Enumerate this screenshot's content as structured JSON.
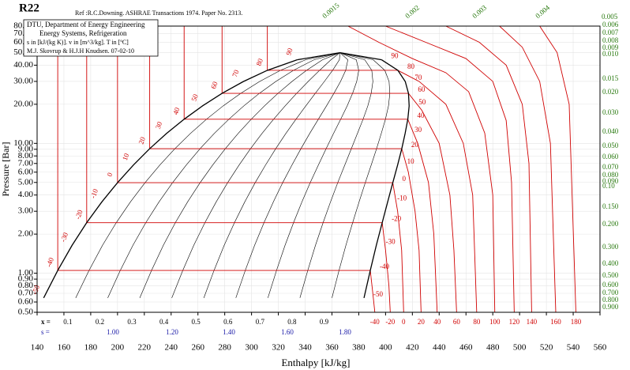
{
  "chart_data": {
    "type": "line",
    "title": "R22",
    "reference": "Ref :R.C.Downing. ASHRAE Transactions 1974. Paper No. 2313.",
    "info": [
      "DTU, Department of Energy Engineering",
      "Energy Systems, Refrigeration",
      "s in [kJ/(kg K)]. v in [m^3/kg]. T in [ºC]",
      "M.J. Skovrup & H.J.H Knudsen. 07-02-10"
    ],
    "xlabel": "Enthalpy [kJ/kg]",
    "ylabel": "Pressure [Bar]",
    "xlim": [
      140,
      560
    ],
    "ylim": [
      0.5,
      80
    ],
    "log_y": true,
    "xticks": [
      140,
      160,
      180,
      200,
      220,
      240,
      260,
      280,
      300,
      320,
      340,
      360,
      380,
      400,
      420,
      440,
      460,
      480,
      500,
      520,
      540,
      560
    ],
    "yticks": [
      {
        "value": 80,
        "label": "80.00"
      },
      {
        "value": 70,
        "label": "70.00"
      },
      {
        "value": 60,
        "label": "60.00"
      },
      {
        "value": 50,
        "label": "50.00"
      },
      {
        "value": 40,
        "label": "40.00"
      },
      {
        "value": 30,
        "label": "30.00"
      },
      {
        "value": 20,
        "label": "20.00"
      },
      {
        "value": 10,
        "label": "10.00"
      },
      {
        "value": 9,
        "label": "9.00"
      },
      {
        "value": 8,
        "label": "8.00"
      },
      {
        "value": 7,
        "label": "7.00"
      },
      {
        "value": 6,
        "label": "6.00"
      },
      {
        "value": 5,
        "label": "5.00"
      },
      {
        "value": 4,
        "label": "4.00"
      },
      {
        "value": 3,
        "label": "3.00"
      },
      {
        "value": 2,
        "label": "2.00"
      },
      {
        "value": 1,
        "label": "1.00"
      },
      {
        "value": 0.9,
        "label": "0.90"
      },
      {
        "value": 0.8,
        "label": "0.80"
      },
      {
        "value": 0.7,
        "label": "0.70"
      },
      {
        "value": 0.6,
        "label": "0.60"
      },
      {
        "value": 0.5,
        "label": "0.50"
      }
    ],
    "saturation": {
      "color": "#000000",
      "T": [
        -50,
        -40,
        -30,
        -20,
        -10,
        0,
        10,
        20,
        30,
        40,
        50,
        60,
        70,
        80,
        90
      ],
      "p": [
        0.645,
        1.05,
        1.64,
        2.45,
        3.55,
        4.98,
        6.81,
        9.1,
        11.92,
        15.34,
        19.43,
        24.27,
        29.93,
        36.5,
        44.0
      ],
      "hl": [
        144.9,
        155.4,
        166.1,
        177.0,
        188.4,
        200.0,
        211.9,
        224.0,
        236.6,
        249.7,
        263.4,
        278.0,
        293.9,
        311.8,
        334.0
      ],
      "hv": [
        383.9,
        388.6,
        393.1,
        397.5,
        401.6,
        405.4,
        409.0,
        412.1,
        414.6,
        416.6,
        417.6,
        417.1,
        414.7,
        409.2,
        397.1
      ]
    },
    "critical_point": {
      "h": 366,
      "p": 49.9
    },
    "isotherm_color": "#d00000",
    "series": [
      {
        "name": "-40",
        "x": [
          155.4,
          155.4,
          388.6,
          390.5,
          392
        ],
        "values": [
          80,
          1.05,
          1.05,
          0.7,
          0.5
        ]
      },
      {
        "name": "-20",
        "x": [
          177,
          177,
          397.5,
          400,
          402.5,
          403.5
        ],
        "values": [
          80,
          2.45,
          2.45,
          1.5,
          0.8,
          0.5
        ]
      },
      {
        "name": "0",
        "x": [
          200,
          200,
          405.4,
          409,
          412,
          413.5
        ],
        "values": [
          80,
          4.98,
          4.98,
          3,
          1.5,
          0.5
        ]
      },
      {
        "name": "20",
        "x": [
          224,
          224,
          412.1,
          417,
          422,
          425,
          426.5
        ],
        "values": [
          80,
          9.1,
          9.1,
          6,
          3,
          1.5,
          0.5
        ]
      },
      {
        "name": "40",
        "x": [
          249.7,
          249.7,
          416.6,
          424,
          432,
          436,
          438.5
        ],
        "values": [
          80,
          15.34,
          15.34,
          10,
          5,
          2,
          0.5
        ]
      },
      {
        "name": "60",
        "x": [
          278,
          278,
          417.1,
          427,
          440,
          448,
          451,
          453
        ],
        "values": [
          80,
          24.27,
          24.27,
          18,
          10,
          4,
          1.5,
          0.5
        ]
      },
      {
        "name": "80",
        "x": [
          311.8,
          311.8,
          409.2,
          425,
          445,
          458,
          465,
          468
        ],
        "values": [
          80,
          36.5,
          36.5,
          30,
          20,
          10,
          4,
          0.5
        ]
      },
      {
        "name": "100",
        "x": [
          372,
          395,
          420,
          445,
          462,
          474,
          480,
          481.5
        ],
        "values": [
          80,
          60,
          45,
          35,
          25,
          12,
          4,
          0.5
        ]
      },
      {
        "name": "120",
        "x": [
          400,
          430,
          460,
          480,
          490,
          494,
          496
        ],
        "values": [
          80,
          60,
          45,
          30,
          15,
          5,
          0.5
        ]
      },
      {
        "name": "140",
        "x": [
          445,
          470,
          490,
          502,
          507,
          509
        ],
        "values": [
          80,
          60,
          40,
          20,
          7,
          0.5
        ]
      },
      {
        "name": "160",
        "x": [
          485,
          502,
          515,
          523,
          527
        ],
        "values": [
          80,
          55,
          30,
          10,
          0.5
        ]
      },
      {
        "name": "180",
        "x": [
          515,
          528,
          537,
          542
        ],
        "values": [
          80,
          50,
          20,
          0.5
        ]
      }
    ],
    "quality": {
      "label": "x =",
      "values": [
        0.1,
        0.2,
        0.3,
        0.4,
        0.5,
        0.6,
        0.7,
        0.8,
        0.9
      ]
    },
    "entropy": {
      "label": "s =",
      "values": [
        {
          "value": 1,
          "label": "1.00"
        },
        {
          "value": 1.2,
          "label": "1.20"
        },
        {
          "value": 1.4,
          "label": "1.40"
        },
        {
          "value": 1.6,
          "label": "1.60"
        },
        {
          "value": 1.8,
          "label": "1.80"
        }
      ]
    },
    "volume_labels_top": [
      0.0015,
      0.002,
      0.003,
      0.004,
      0.005
    ],
    "volume_labels": [
      0.006,
      0.007,
      0.008,
      0.009,
      {
        "value": 0.01,
        "label": "0.010"
      },
      0.015,
      {
        "value": 0.02,
        "label": "0.020"
      },
      {
        "value": 0.03,
        "label": "0.030"
      },
      {
        "value": 0.04,
        "label": "0.040"
      },
      {
        "value": 0.05,
        "label": "0.050"
      },
      {
        "value": 0.06,
        "label": "0.060"
      },
      {
        "value": 0.07,
        "label": "0.070"
      },
      {
        "value": 0.08,
        "label": "0.080"
      },
      {
        "value": 0.09,
        "label": "0.090"
      },
      {
        "value": 0.1,
        "label": "0.10"
      },
      {
        "value": 0.15,
        "label": "0.150"
      },
      {
        "value": 0.2,
        "label": "0.200"
      },
      {
        "value": 0.3,
        "label": "0.300"
      },
      {
        "value": 0.4,
        "label": "0.400"
      },
      {
        "value": 0.5,
        "label": "0.500"
      },
      {
        "value": 0.6,
        "label": "0.600"
      },
      {
        "value": 0.7,
        "label": "0.700"
      },
      {
        "value": 0.8,
        "label": "0.800"
      },
      {
        "value": 0.9,
        "label": "0.900"
      }
    ]
  }
}
